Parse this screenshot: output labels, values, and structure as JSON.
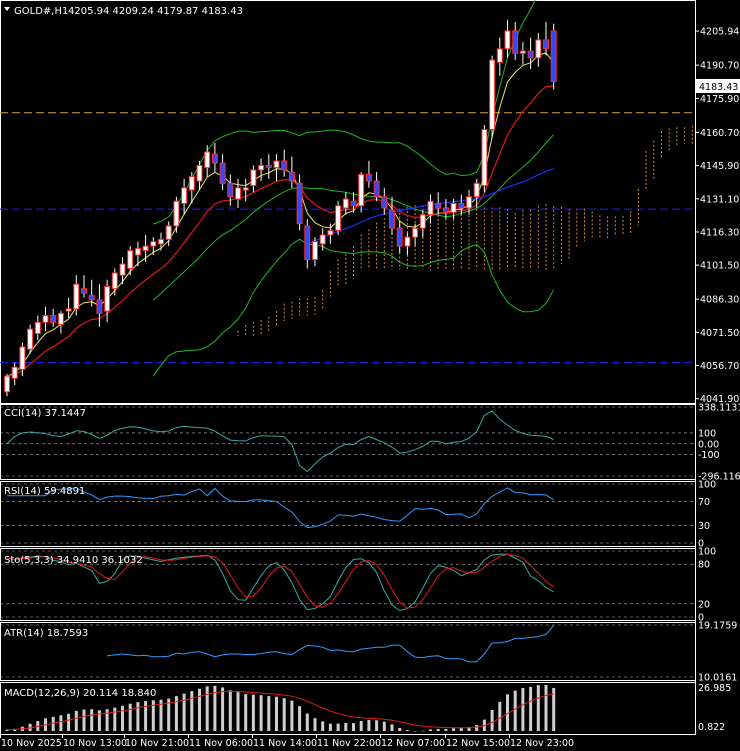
{
  "window": {
    "title": "GOLD#,H1",
    "ohlc": "4205.94 4209.24 4179.87 4183.43",
    "current_price": "4183.43"
  },
  "colors": {
    "background": "#000000",
    "axis": "#ffffff",
    "bull_body": "#ffffff",
    "bear_body": "#2f4cff",
    "candle_edge": "#ff2a2a",
    "bollinger": "#1fb81f",
    "ma_fast": "#e8e85a",
    "ma_mid": "#e01a1a",
    "ma_slow": "#1a2cff",
    "ichimoku_cloud": "#d98a3a",
    "hline_orange": "#d9a13a",
    "hline_blue": "#2020ff",
    "indicator_line": "#3399ff",
    "cci_line": "#3aa8a0",
    "stoch_signal": "#e01a1a",
    "macd_hist": "#cfcfcf",
    "macd_signal": "#e01a1a"
  },
  "chart_data": {
    "type": "candlestick",
    "symbol": "GOLD#",
    "timeframe": "H1",
    "x_labels": [
      "10 Nov 2025",
      "10 Nov 13:00",
      "10 Nov 21:00",
      "11 Nov 06:00",
      "11 Nov 14:00",
      "11 Nov 22:00",
      "12 Nov 07:00",
      "12 Nov 15:00",
      "12 Nov 23:00"
    ],
    "y_ticks": [
      "4205.94",
      "4190.70",
      "4175.90",
      "4160.70",
      "4145.90",
      "4131.10",
      "4116.30",
      "4101.50",
      "4086.30",
      "4071.50",
      "4056.70",
      "4041.90"
    ],
    "ylim": [
      4040.0,
      4218.0
    ],
    "horizontal_lines": [
      4169.5,
      4126.5,
      4058.0
    ],
    "price_label": "4183.43",
    "candles": [
      [
        4045,
        4053,
        4043,
        4052
      ],
      [
        4051,
        4058,
        4048,
        4056
      ],
      [
        4055,
        4067,
        4052,
        4065
      ],
      [
        4064,
        4075,
        4062,
        4073
      ],
      [
        4071,
        4079,
        4068,
        4076
      ],
      [
        4076,
        4083,
        4072,
        4079
      ],
      [
        4079,
        4082,
        4074,
        4076
      ],
      [
        4075,
        4081,
        4071,
        4080
      ],
      [
        4081,
        4087,
        4078,
        4082
      ],
      [
        4082,
        4097,
        4079,
        4093
      ],
      [
        4091,
        4097,
        4087,
        4089
      ],
      [
        4088,
        4095,
        4083,
        4086
      ],
      [
        4086,
        4093,
        4074,
        4080
      ],
      [
        4081,
        4095,
        4076,
        4092
      ],
      [
        4091,
        4100,
        4088,
        4098
      ],
      [
        4097,
        4105,
        4093,
        4102
      ],
      [
        4100,
        4110,
        4097,
        4108
      ],
      [
        4106,
        4112,
        4101,
        4109
      ],
      [
        4108,
        4115,
        4103,
        4110
      ],
      [
        4110,
        4114,
        4106,
        4112
      ],
      [
        4111,
        4116,
        4108,
        4113
      ],
      [
        4113,
        4121,
        4110,
        4119
      ],
      [
        4119,
        4132,
        4116,
        4130
      ],
      [
        4129,
        4140,
        4124,
        4136
      ],
      [
        4135,
        4143,
        4129,
        4141
      ],
      [
        4139,
        4148,
        4135,
        4146
      ],
      [
        4145,
        4155,
        4141,
        4152
      ],
      [
        4151,
        4156,
        4143,
        4147
      ],
      [
        4147,
        4151,
        4135,
        4138
      ],
      [
        4138,
        4142,
        4128,
        4132
      ],
      [
        4131,
        4140,
        4127,
        4136
      ],
      [
        4135,
        4140,
        4130,
        4136
      ],
      [
        4137,
        4146,
        4134,
        4144
      ],
      [
        4144,
        4149,
        4139,
        4146
      ],
      [
        4146,
        4151,
        4140,
        4145
      ],
      [
        4145,
        4151,
        4139,
        4148
      ],
      [
        4148,
        4153,
        4141,
        4144
      ],
      [
        4143,
        4150,
        4136,
        4139
      ],
      [
        4138,
        4142,
        4117,
        4120
      ],
      [
        4119,
        4122,
        4100,
        4104
      ],
      [
        4104,
        4114,
        4101,
        4112
      ],
      [
        4111,
        4118,
        4108,
        4115
      ],
      [
        4115,
        4120,
        4111,
        4117
      ],
      [
        4117,
        4130,
        4115,
        4128
      ],
      [
        4127,
        4134,
        4124,
        4131
      ],
      [
        4130,
        4134,
        4125,
        4128
      ],
      [
        4128,
        4143,
        4125,
        4142
      ],
      [
        4142,
        4148,
        4136,
        4139
      ],
      [
        4139,
        4143,
        4130,
        4132
      ],
      [
        4132,
        4136,
        4124,
        4127
      ],
      [
        4126,
        4132,
        4115,
        4118
      ],
      [
        4118,
        4121,
        4107,
        4110
      ],
      [
        4110,
        4116,
        4106,
        4114
      ],
      [
        4114,
        4120,
        4110,
        4118
      ],
      [
        4118,
        4126,
        4114,
        4124
      ],
      [
        4124,
        4133,
        4120,
        4130
      ],
      [
        4129,
        4134,
        4124,
        4127
      ],
      [
        4127,
        4131,
        4122,
        4125
      ],
      [
        4125,
        4131,
        4122,
        4129
      ],
      [
        4129,
        4133,
        4124,
        4127
      ],
      [
        4127,
        4135,
        4124,
        4132
      ],
      [
        4132,
        4140,
        4127,
        4138
      ],
      [
        4137,
        4164,
        4134,
        4162
      ],
      [
        4162,
        4195,
        4158,
        4193
      ],
      [
        4192,
        4203,
        4186,
        4198
      ],
      [
        4198,
        4211,
        4194,
        4206
      ],
      [
        4206,
        4210,
        4193,
        4196
      ],
      [
        4196,
        4201,
        4191,
        4197
      ],
      [
        4197,
        4203,
        4189,
        4194
      ],
      [
        4194,
        4205,
        4190,
        4202
      ],
      [
        4202,
        4210,
        4195,
        4198
      ],
      [
        4205.94,
        4209.24,
        4179.87,
        4183.43
      ]
    ],
    "cci": {
      "label": "CCI(14)",
      "value": "37.1447",
      "levels": [
        "338.1131",
        "100",
        "0.00",
        "-100",
        "-296.1164"
      ],
      "range": [
        -296.1164,
        338.1131
      ]
    },
    "rsi": {
      "label": "RSI(14)",
      "value": "59.4891",
      "levels": [
        "100",
        "70",
        "30",
        "0"
      ],
      "range": [
        0,
        100
      ]
    },
    "stochastic": {
      "label": "Sto(5,3,3)",
      "main": "34.9410",
      "signal": "36.1032",
      "levels": [
        "100",
        "80",
        "20",
        "0"
      ],
      "range": [
        0,
        100
      ]
    },
    "atr": {
      "label": "ATR(14)",
      "value": "18.7593",
      "levels": [
        "19.1759",
        "10.0161"
      ],
      "range": [
        10.0161,
        19.1759
      ]
    },
    "macd": {
      "label": "MACD(12,26,9)",
      "main": "20.114",
      "signal": "18.840",
      "levels": [
        "26.985",
        "0.822"
      ],
      "range": [
        0.822,
        26.985
      ]
    }
  }
}
